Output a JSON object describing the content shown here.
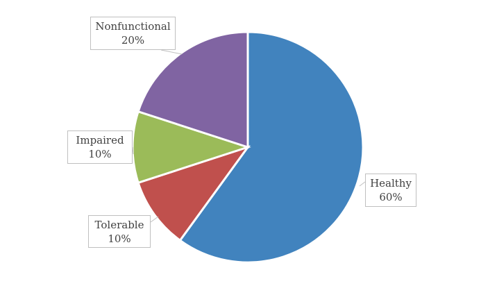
{
  "chart_data": {
    "type": "pie",
    "start_angle": "top, clockwise",
    "legend": "none",
    "slices": [
      {
        "label": "Healthy",
        "value": 60,
        "value_label": "60%",
        "color": "#4183BE"
      },
      {
        "label": "Tolerable",
        "value": 10,
        "value_label": "10%",
        "color": "#C0504D"
      },
      {
        "label": "Impaired",
        "value": 10,
        "value_label": "10%",
        "color": "#9BBB59"
      },
      {
        "label": "Nonfunctional",
        "value": 20,
        "value_label": "20%",
        "color": "#8064A2"
      }
    ]
  }
}
